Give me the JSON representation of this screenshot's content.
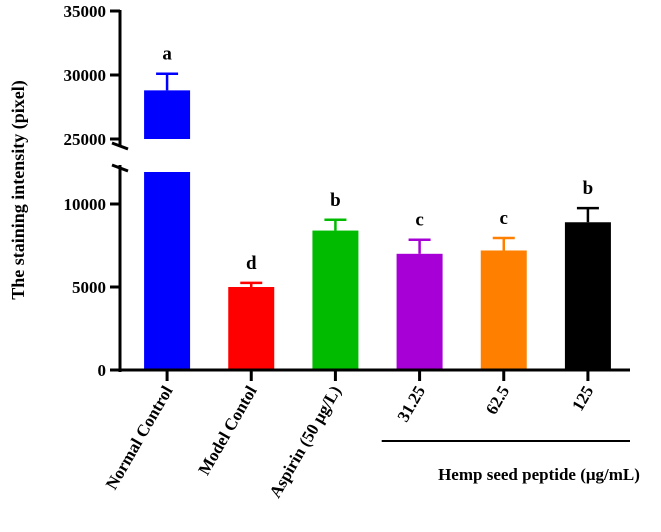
{
  "chart_data": {
    "type": "bar",
    "title": "",
    "ylabel": "The staining intensity (pixel)",
    "xlabel": "",
    "y_axis_break": [
      12500,
      25000
    ],
    "ylim_lower": [
      0,
      12500
    ],
    "ylim_upper": [
      25000,
      35000
    ],
    "yticks": [
      {
        "value": 0,
        "label": "0"
      },
      {
        "value": 5000,
        "label": "5000"
      },
      {
        "value": 10000,
        "label": "10000"
      },
      {
        "value": 25000,
        "label": "25000"
      },
      {
        "value": 30000,
        "label": "30000"
      },
      {
        "value": 35000,
        "label": "35000"
      }
    ],
    "categories": [
      "Normal Control",
      "Model Contol",
      "Aspirin (50 μg/L)",
      "31.25",
      "62.5",
      "125"
    ],
    "values": [
      28800,
      5000,
      8400,
      7000,
      7200,
      8900
    ],
    "errors": [
      1300,
      250,
      650,
      850,
      750,
      850
    ],
    "colors": [
      "#0000ff",
      "#ff0000",
      "#00bb00",
      "#a600d6",
      "#ff8000",
      "#000000"
    ],
    "significance_letters": [
      "a",
      "d",
      "b",
      "c",
      "c",
      "b"
    ],
    "group_label": {
      "text": "Hemp seed peptide (μg/mL)",
      "categories": [
        "31.25",
        "62.5",
        "125"
      ]
    },
    "grid": false,
    "legend": "none"
  }
}
